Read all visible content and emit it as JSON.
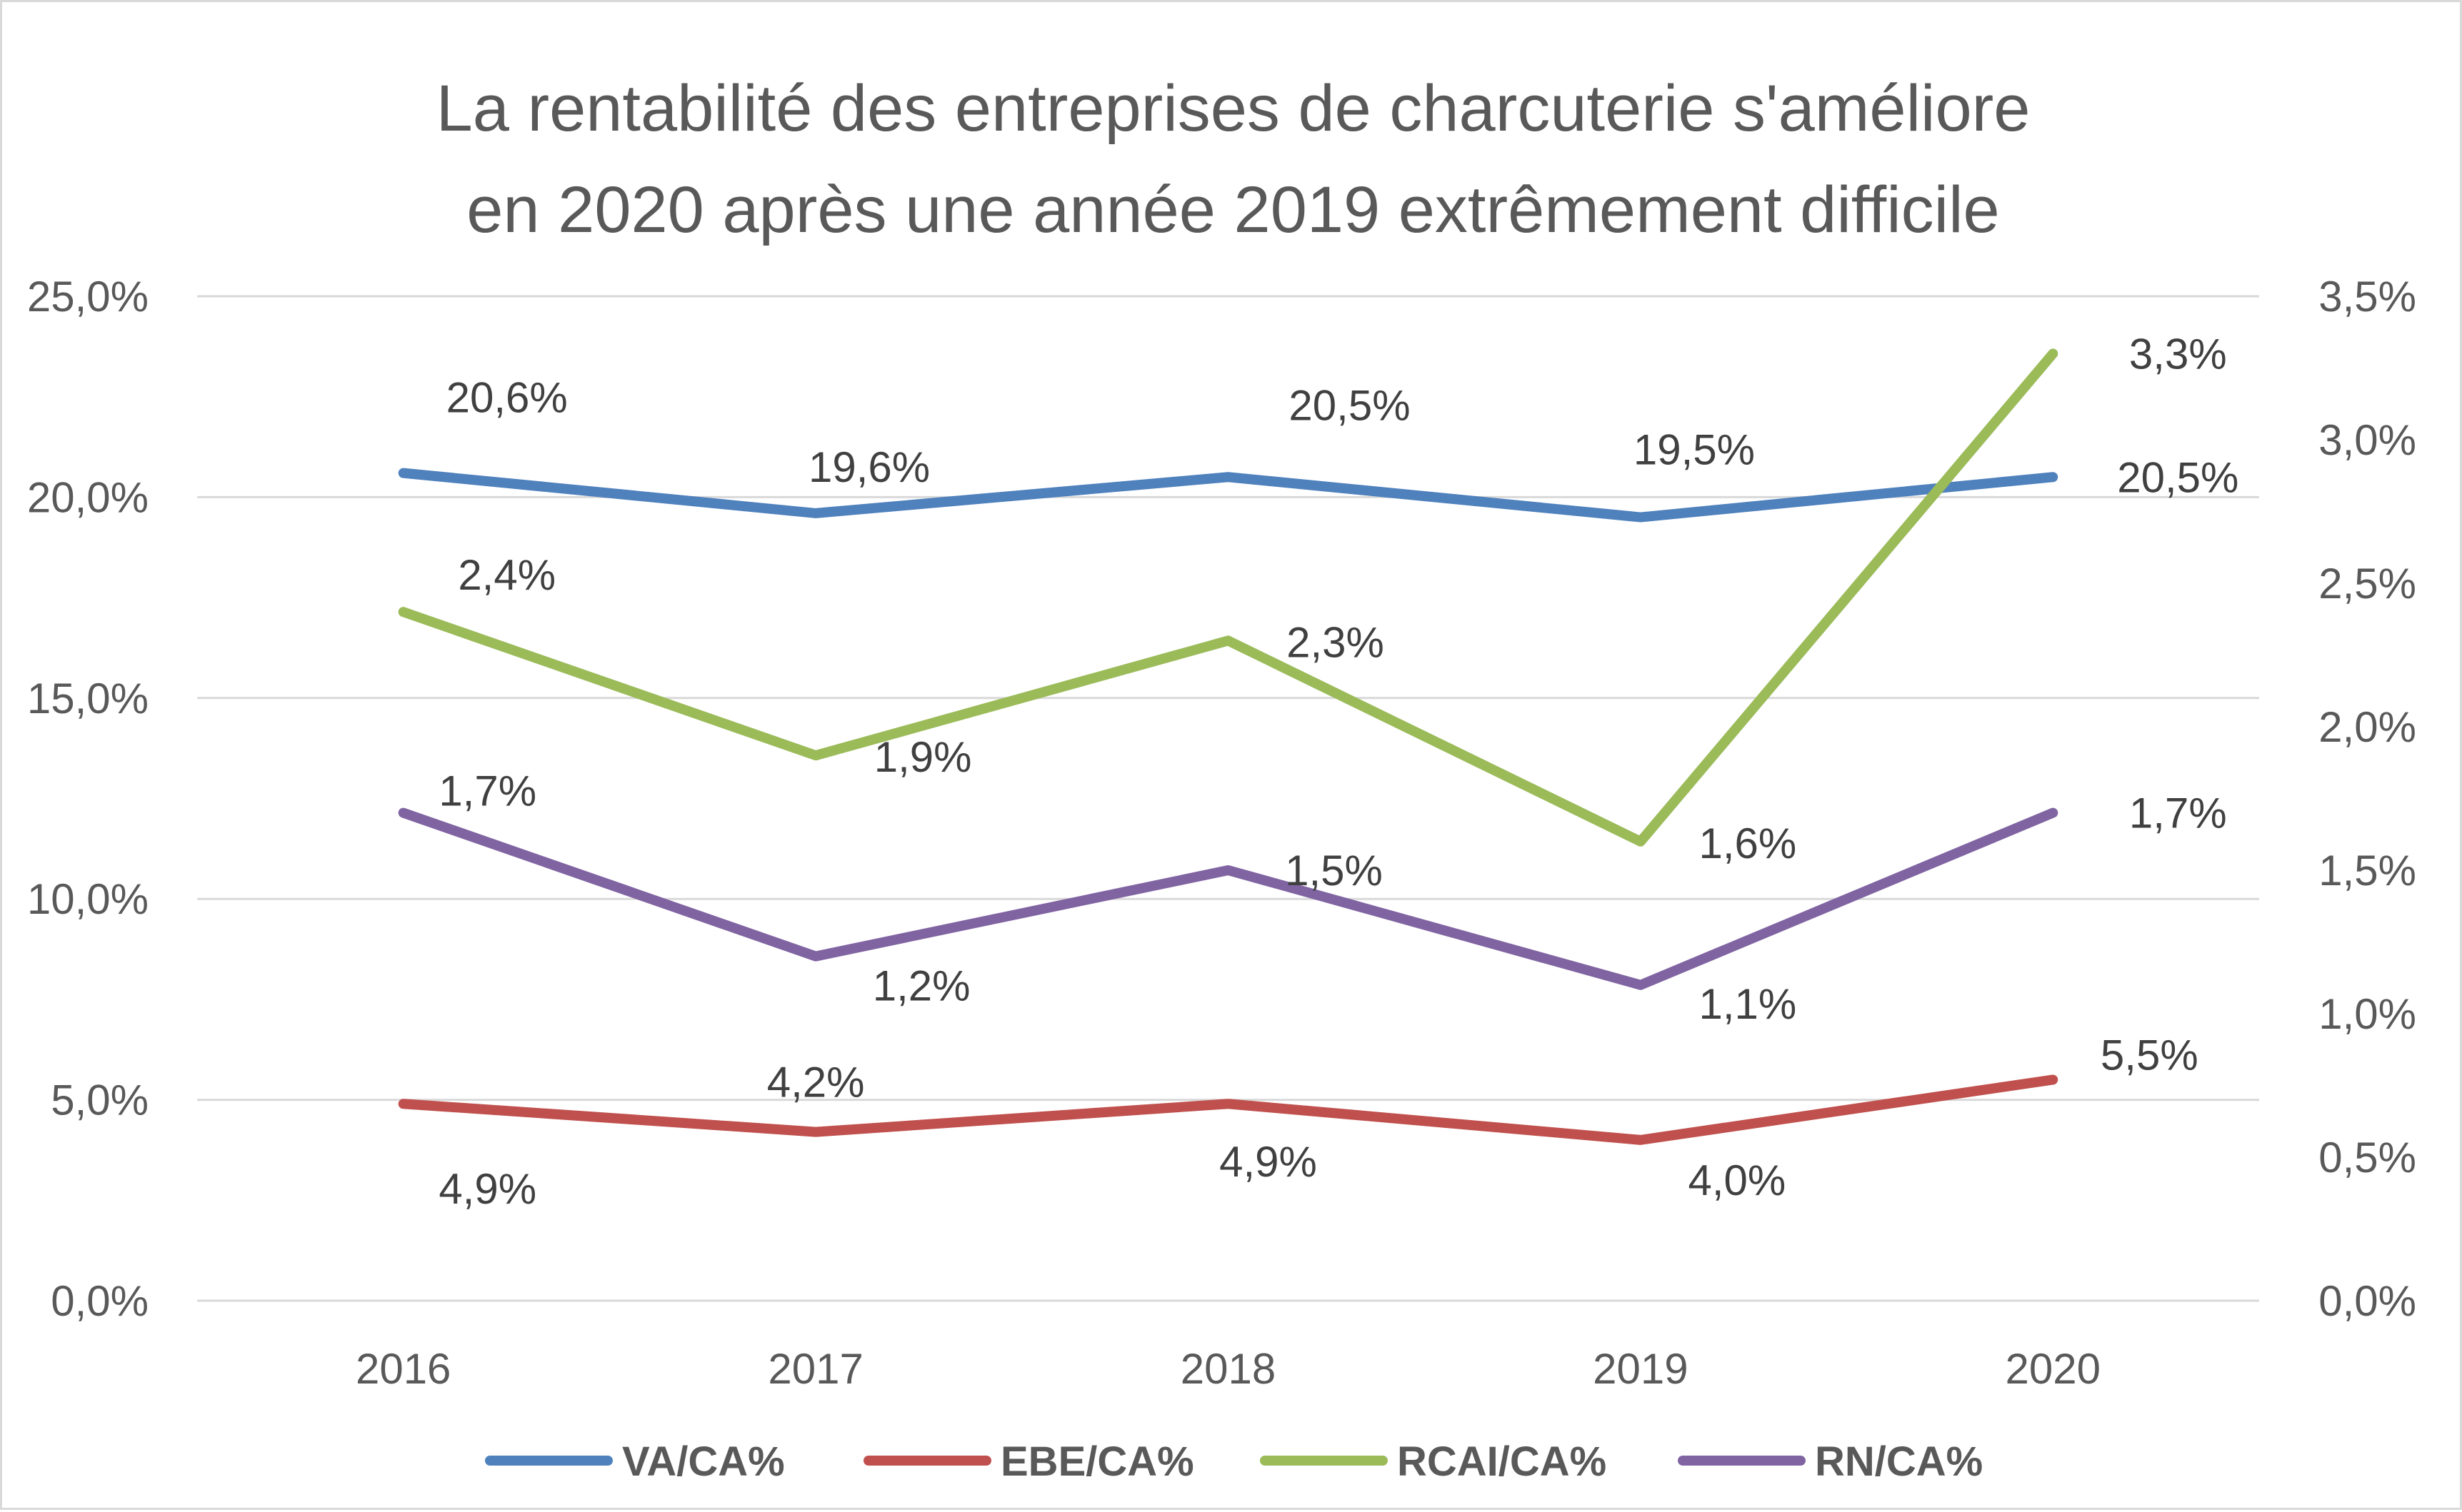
{
  "chart_data": {
    "type": "line",
    "title_line1": "La rentabilité des entreprises de charcuterie s'améliore",
    "title_line2": "en 2020 après une année 2019 extrêmement difficile",
    "categories": [
      "2016",
      "2017",
      "2018",
      "2019",
      "2020"
    ],
    "y_left": {
      "ylim": [
        0,
        25
      ],
      "ticks": [
        0,
        5,
        10,
        15,
        20,
        25
      ],
      "tick_labels": [
        "0,0%",
        "5,0%",
        "10,0%",
        "15,0%",
        "20,0%",
        "25,0%"
      ]
    },
    "y_right": {
      "ylim": [
        0,
        3.5
      ],
      "ticks": [
        0,
        0.5,
        1,
        1.5,
        2,
        2.5,
        3,
        3.5
      ],
      "tick_labels": [
        "0,0%",
        "0,5%",
        "1,0%",
        "1,5%",
        "2,0%",
        "2,5%",
        "3,0%",
        "3,5%"
      ]
    },
    "grid": true,
    "legend_position": "bottom",
    "series": [
      {
        "name": "VA/CA%",
        "axis": "left",
        "color": "#4f81bd",
        "values": [
          20.6,
          19.6,
          20.5,
          19.5,
          20.5
        ],
        "labels": [
          "20,6%",
          "19,6%",
          "20,5%",
          "19,5%",
          "20,5%"
        ]
      },
      {
        "name": "EBE/CA%",
        "axis": "left",
        "color": "#c0504d",
        "values": [
          4.9,
          4.2,
          4.9,
          4.0,
          5.5
        ],
        "labels": [
          "4,9%",
          "4,2%",
          "4,9%",
          "4,0%",
          "5,5%"
        ]
      },
      {
        "name": "RCAI/CA%",
        "axis": "right",
        "color": "#9bbb59",
        "values": [
          2.4,
          1.9,
          2.3,
          1.6,
          3.3
        ],
        "labels": [
          "2,4%",
          "1,9%",
          "2,3%",
          "1,6%",
          "3,3%"
        ]
      },
      {
        "name": "RN/CA%",
        "axis": "right",
        "color": "#8064a2",
        "values": [
          1.7,
          1.2,
          1.5,
          1.1,
          1.7
        ],
        "labels": [
          "1,7%",
          "1,2%",
          "1,5%",
          "1,1%",
          "1,7%"
        ]
      }
    ]
  }
}
